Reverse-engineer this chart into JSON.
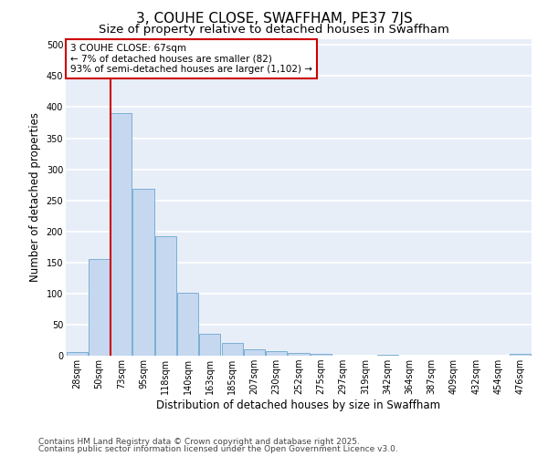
{
  "title": "3, COUHE CLOSE, SWAFFHAM, PE37 7JS",
  "subtitle": "Size of property relative to detached houses in Swaffham",
  "xlabel": "Distribution of detached houses by size in Swaffham",
  "ylabel": "Number of detached properties",
  "categories": [
    "28sqm",
    "50sqm",
    "73sqm",
    "95sqm",
    "118sqm",
    "140sqm",
    "163sqm",
    "185sqm",
    "207sqm",
    "230sqm",
    "252sqm",
    "275sqm",
    "297sqm",
    "319sqm",
    "342sqm",
    "364sqm",
    "387sqm",
    "409sqm",
    "432sqm",
    "454sqm",
    "476sqm"
  ],
  "values": [
    6,
    155,
    390,
    268,
    192,
    102,
    35,
    20,
    10,
    8,
    5,
    3,
    0,
    0,
    2,
    0,
    0,
    0,
    0,
    0,
    3
  ],
  "bar_color": "#c5d8f0",
  "bar_edge_color": "#7bafd4",
  "bg_color": "#e8eef8",
  "grid_color": "#ffffff",
  "annotation_line_color": "#cc0000",
  "annotation_box_text_line1": "3 COUHE CLOSE: 67sqm",
  "annotation_box_text_line2": "← 7% of detached houses are smaller (82)",
  "annotation_box_text_line3": "93% of semi-detached houses are larger (1,102) →",
  "ylim": [
    0,
    510
  ],
  "yticks": [
    0,
    50,
    100,
    150,
    200,
    250,
    300,
    350,
    400,
    450,
    500
  ],
  "footer_line1": "Contains HM Land Registry data © Crown copyright and database right 2025.",
  "footer_line2": "Contains public sector information licensed under the Open Government Licence v3.0.",
  "title_fontsize": 11,
  "subtitle_fontsize": 9.5,
  "axis_label_fontsize": 8.5,
  "tick_fontsize": 7,
  "footer_fontsize": 6.5,
  "annotation_fontsize": 7.5
}
